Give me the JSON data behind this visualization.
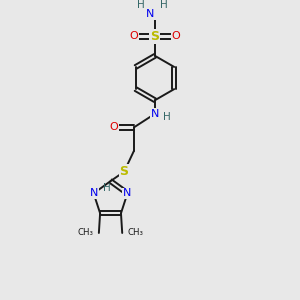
{
  "bg_color": "#e8e8e8",
  "atom_colors": {
    "C": "#1a1a1a",
    "N": "#0000ee",
    "O": "#dd0000",
    "S": "#bbbb00",
    "H": "#336666"
  },
  "figsize": [
    3.0,
    3.0
  ],
  "dpi": 100,
  "xlim": [
    0,
    10
  ],
  "ylim": [
    0,
    12
  ]
}
